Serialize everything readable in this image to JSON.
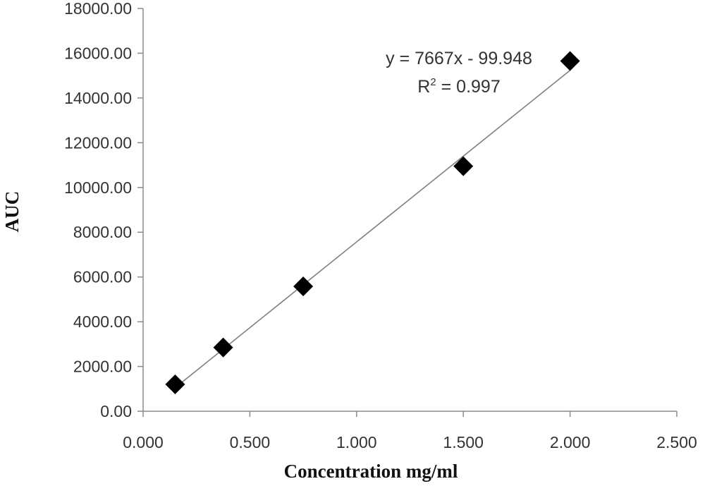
{
  "chart_data": {
    "type": "scatter",
    "title": "",
    "xlabel": "Concentration mg/ml",
    "ylabel": "AUC",
    "xlim": [
      0,
      2.5
    ],
    "ylim": [
      0,
      18000
    ],
    "x_ticks": [
      "0.000",
      "0.500",
      "1.000",
      "1.500",
      "2.000",
      "2.500"
    ],
    "y_ticks": [
      "0.00",
      "2000.00",
      "4000.00",
      "6000.00",
      "8000.00",
      "10000.00",
      "12000.00",
      "14000.00",
      "16000.00",
      "18000.00"
    ],
    "grid": false,
    "legend": "none",
    "series": [
      {
        "marker": "diamond",
        "color": "#000000",
        "x": [
          0.15,
          0.375,
          0.75,
          1.5,
          2.0
        ],
        "y": [
          1200,
          2850,
          5580,
          10950,
          15650
        ]
      }
    ],
    "trendline": {
      "type": "linear",
      "slope": 7667,
      "intercept": -99.948,
      "x_range": [
        0.15,
        2.0
      ],
      "color": "#808080"
    },
    "annotations": {
      "equation": "y = 7667x - 99.948",
      "r_squared_prefix": "R",
      "r_squared_exp": "2",
      "r_squared_value": " = 0.997"
    }
  }
}
